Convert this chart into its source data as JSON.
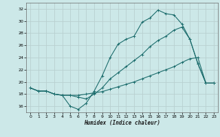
{
  "xlabel": "Humidex (Indice chaleur)",
  "bg_color": "#cce8e8",
  "grid_color": "#b8d0d0",
  "line_color": "#1a6b6b",
  "xlim": [
    -0.5,
    23.5
  ],
  "ylim": [
    15,
    33
  ],
  "xticks": [
    0,
    1,
    2,
    3,
    4,
    5,
    6,
    7,
    8,
    9,
    10,
    11,
    12,
    13,
    14,
    15,
    16,
    17,
    18,
    19,
    20,
    21,
    22,
    23
  ],
  "yticks": [
    16,
    18,
    20,
    22,
    24,
    26,
    28,
    30,
    32
  ],
  "line1_x": [
    0,
    1,
    2,
    3,
    4,
    5,
    6,
    7,
    8,
    9,
    10,
    11,
    12,
    13,
    14,
    15,
    16,
    17,
    18,
    19,
    20,
    21,
    22,
    23
  ],
  "line1_y": [
    19.0,
    18.5,
    18.5,
    18.0,
    17.8,
    16.0,
    15.5,
    16.5,
    18.5,
    21.0,
    24.0,
    26.2,
    27.0,
    27.5,
    29.8,
    30.5,
    31.8,
    31.2,
    31.0,
    29.5,
    27.0,
    23.0,
    19.8,
    19.8
  ],
  "line2_x": [
    0,
    1,
    2,
    3,
    4,
    5,
    6,
    7,
    8,
    9,
    10,
    11,
    12,
    13,
    14,
    15,
    16,
    17,
    18,
    19,
    20,
    21,
    22,
    23
  ],
  "line2_y": [
    19.0,
    18.5,
    18.5,
    18.0,
    17.8,
    17.8,
    17.8,
    18.0,
    18.2,
    18.4,
    18.8,
    19.2,
    19.6,
    20.0,
    20.5,
    21.0,
    21.5,
    22.0,
    22.5,
    23.2,
    23.8,
    24.0,
    19.8,
    19.8
  ],
  "line3_x": [
    0,
    1,
    2,
    3,
    4,
    5,
    6,
    7,
    8,
    9,
    10,
    11,
    12,
    13,
    14,
    15,
    16,
    17,
    18,
    19,
    20,
    21,
    22,
    23
  ],
  "line3_y": [
    19.0,
    18.5,
    18.5,
    18.0,
    17.8,
    17.8,
    17.5,
    17.2,
    18.0,
    19.0,
    20.5,
    21.5,
    22.5,
    23.5,
    24.5,
    25.8,
    26.8,
    27.5,
    28.5,
    29.0,
    27.0,
    23.0,
    19.8,
    19.8
  ]
}
